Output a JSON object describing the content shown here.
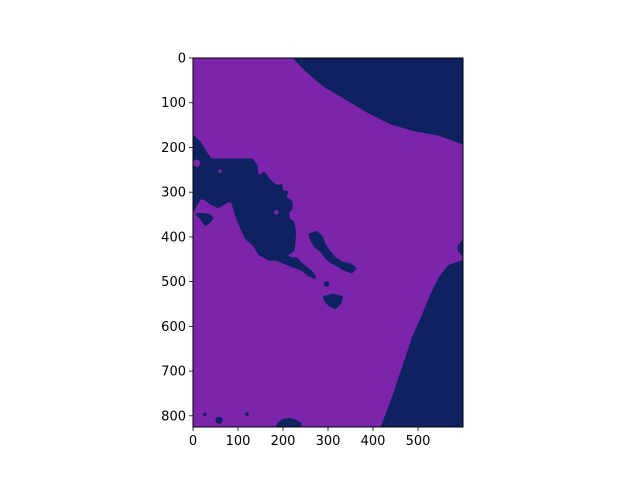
{
  "chart_data": {
    "type": "heatmap",
    "title": "",
    "xlabel": "",
    "ylabel": "",
    "xlim": [
      0,
      600
    ],
    "ylim": [
      825,
      0
    ],
    "x_ticks": [
      {
        "value": 0,
        "label": "0"
      },
      {
        "value": 100,
        "label": "100"
      },
      {
        "value": 200,
        "label": "200"
      },
      {
        "value": 300,
        "label": "300"
      },
      {
        "value": 400,
        "label": "400"
      },
      {
        "value": 500,
        "label": "500"
      }
    ],
    "y_ticks": [
      {
        "value": 0,
        "label": "0"
      },
      {
        "value": 100,
        "label": "100"
      },
      {
        "value": 200,
        "label": "200"
      },
      {
        "value": 300,
        "label": "300"
      },
      {
        "value": 400,
        "label": "400"
      },
      {
        "value": 500,
        "label": "500"
      },
      {
        "value": 600,
        "label": "600"
      },
      {
        "value": 700,
        "label": "700"
      },
      {
        "value": 800,
        "label": "800"
      }
    ],
    "colors": {
      "background_class": "#7d24ad",
      "foreground_class": "#0e2261"
    },
    "regions": [
      {
        "name": "top-right-region",
        "points": [
          [
            225,
            0
          ],
          [
            600,
            0
          ],
          [
            600,
            190
          ],
          [
            545,
            170
          ],
          [
            490,
            160
          ],
          [
            440,
            145
          ],
          [
            390,
            120
          ],
          [
            340,
            90
          ],
          [
            290,
            60
          ],
          [
            250,
            25
          ]
        ]
      },
      {
        "name": "bottom-right-region",
        "points": [
          [
            600,
            455
          ],
          [
            600,
            825
          ],
          [
            420,
            825
          ],
          [
            430,
            800
          ],
          [
            445,
            760
          ],
          [
            460,
            715
          ],
          [
            475,
            670
          ],
          [
            490,
            625
          ],
          [
            510,
            580
          ],
          [
            530,
            530
          ],
          [
            550,
            490
          ],
          [
            570,
            465
          ]
        ]
      },
      {
        "name": "right-edge-notch",
        "points": [
          [
            600,
            410
          ],
          [
            592,
            420
          ],
          [
            592,
            430
          ],
          [
            600,
            440
          ]
        ]
      },
      {
        "name": "left-diagonal-blob",
        "points": [
          [
            0,
            175
          ],
          [
            15,
            190
          ],
          [
            30,
            215
          ],
          [
            40,
            228
          ],
          [
            130,
            228
          ],
          [
            140,
            240
          ],
          [
            142,
            260
          ],
          [
            150,
            265
          ],
          [
            158,
            258
          ],
          [
            168,
            272
          ],
          [
            178,
            282
          ],
          [
            188,
            288
          ],
          [
            196,
            285
          ],
          [
            196,
            298
          ],
          [
            208,
            300
          ],
          [
            204,
            312
          ],
          [
            218,
            322
          ],
          [
            218,
            336
          ],
          [
            210,
            345
          ],
          [
            212,
            360
          ],
          [
            222,
            368
          ],
          [
            226,
            390
          ],
          [
            224,
            415
          ],
          [
            222,
            430
          ],
          [
            206,
            440
          ],
          [
            214,
            448
          ],
          [
            230,
            450
          ],
          [
            245,
            465
          ],
          [
            262,
            478
          ],
          [
            270,
            490
          ],
          [
            258,
            485
          ],
          [
            244,
            473
          ],
          [
            222,
            465
          ],
          [
            210,
            460
          ],
          [
            198,
            455
          ],
          [
            186,
            450
          ],
          [
            170,
            450
          ],
          [
            148,
            438
          ],
          [
            136,
            418
          ],
          [
            118,
            402
          ],
          [
            108,
            380
          ],
          [
            96,
            350
          ],
          [
            88,
            322
          ],
          [
            80,
            318
          ],
          [
            68,
            325
          ],
          [
            55,
            332
          ],
          [
            40,
            325
          ],
          [
            28,
            315
          ],
          [
            15,
            312
          ],
          [
            0,
            340
          ]
        ]
      },
      {
        "name": "middle-island",
        "points": [
          [
            260,
            395
          ],
          [
            275,
            390
          ],
          [
            285,
            400
          ],
          [
            290,
            415
          ],
          [
            300,
            430
          ],
          [
            315,
            448
          ],
          [
            330,
            458
          ],
          [
            348,
            462
          ],
          [
            360,
            470
          ],
          [
            352,
            478
          ],
          [
            336,
            472
          ],
          [
            322,
            464
          ],
          [
            310,
            457
          ],
          [
            300,
            450
          ],
          [
            292,
            440
          ],
          [
            284,
            430
          ],
          [
            272,
            420
          ],
          [
            264,
            408
          ]
        ]
      },
      {
        "name": "small-blob-a",
        "points": [
          [
            292,
            535
          ],
          [
            312,
            530
          ],
          [
            330,
            535
          ],
          [
            326,
            548
          ],
          [
            316,
            558
          ],
          [
            304,
            552
          ],
          [
            296,
            544
          ]
        ]
      },
      {
        "name": "small-blob-b",
        "points": [
          [
            58,
            300
          ],
          [
            66,
            298
          ],
          [
            72,
            305
          ],
          [
            70,
            318
          ],
          [
            62,
            320
          ],
          [
            56,
            312
          ]
        ]
      },
      {
        "name": "small-blob-c",
        "points": [
          [
            10,
            350
          ],
          [
            20,
            360
          ],
          [
            28,
            372
          ],
          [
            36,
            366
          ],
          [
            42,
            358
          ],
          [
            36,
            352
          ],
          [
            24,
            350
          ]
        ]
      },
      {
        "name": "small-blob-d",
        "points": [
          [
            190,
            818
          ],
          [
            200,
            810
          ],
          [
            215,
            808
          ],
          [
            228,
            812
          ],
          [
            238,
            818
          ],
          [
            236,
            825
          ],
          [
            188,
            825
          ]
        ]
      }
    ],
    "overlay_dots": [
      {
        "name": "dot-a",
        "x": 8,
        "y": 235,
        "r": 8
      },
      {
        "name": "dot-b",
        "x": 60,
        "y": 253,
        "r": 4
      },
      {
        "name": "dot-c",
        "x": 185,
        "y": 345,
        "r": 5
      }
    ],
    "specks": [
      {
        "name": "speck-a",
        "x": 297,
        "y": 505,
        "r": 6
      },
      {
        "name": "speck-b",
        "x": 26,
        "y": 797,
        "r": 4
      },
      {
        "name": "speck-c",
        "x": 120,
        "y": 796,
        "r": 4
      },
      {
        "name": "speck-d",
        "x": 58,
        "y": 810,
        "r": 8
      }
    ]
  }
}
